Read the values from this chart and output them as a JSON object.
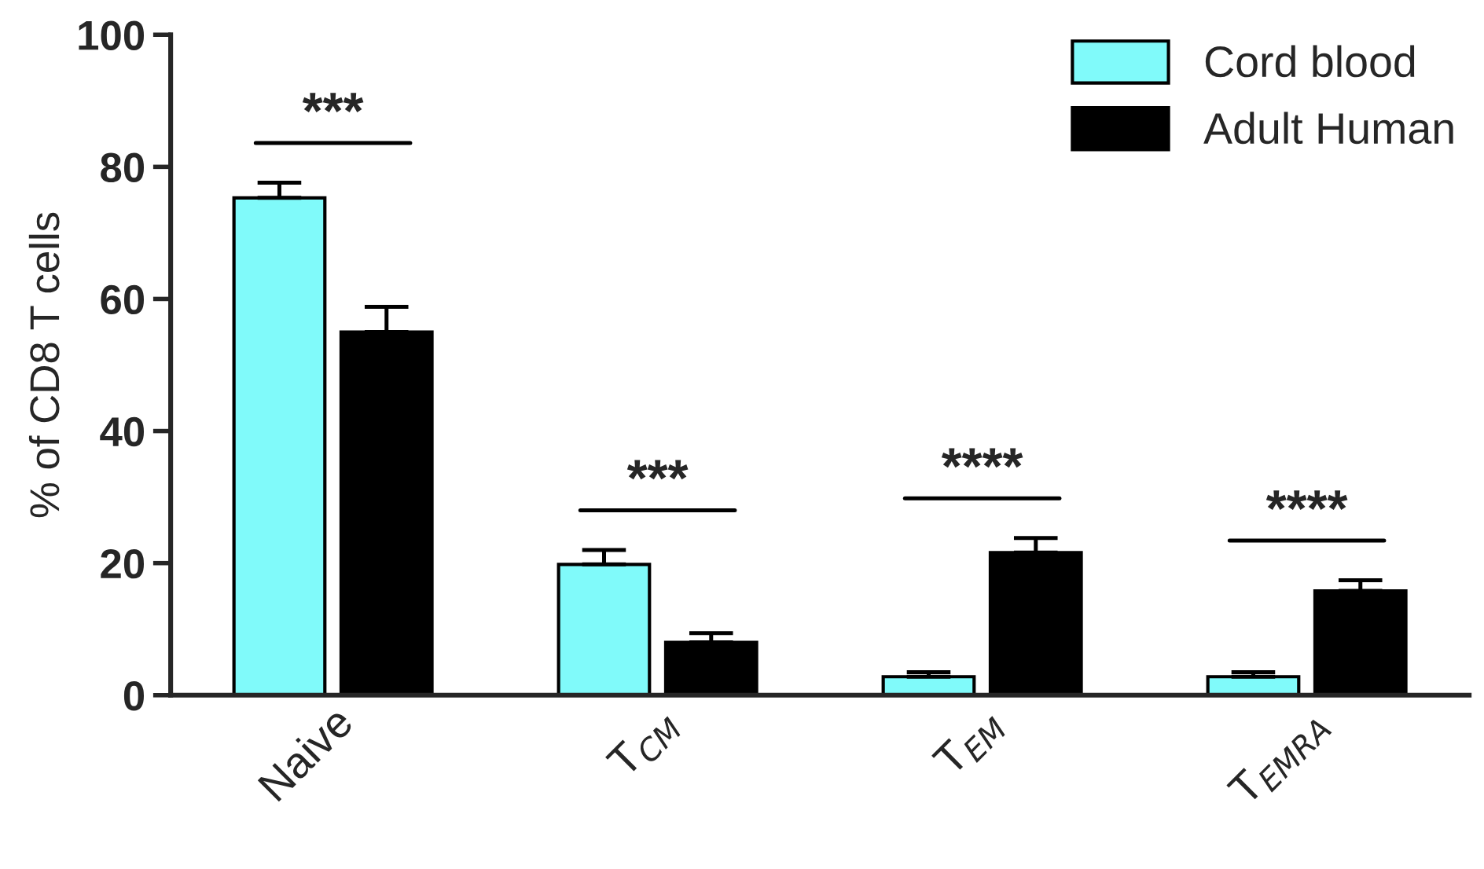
{
  "chart_data": {
    "type": "bar",
    "ylabel": "% of CD8 T cells",
    "categories": [
      "Naive",
      "T$_{CM}$",
      "T$_{EM}$",
      "T$_{EMRA}$"
    ],
    "series": [
      {
        "name": "Cord blood",
        "color": "#80fafa",
        "values": [
          75.3,
          19.8,
          2.8,
          2.8
        ],
        "errors": [
          2.3,
          2.2,
          0.7,
          0.7
        ]
      },
      {
        "name": "Adult Human",
        "color": "#000000",
        "values": [
          55,
          8,
          21.6,
          15.8
        ],
        "errors": [
          3.8,
          1.4,
          2.2,
          1.6
        ]
      }
    ],
    "ylim": [
      0,
      100
    ],
    "yticks": [
      0,
      20,
      40,
      60,
      80,
      100
    ],
    "annotations": [
      "***",
      "***",
      "****",
      "****"
    ],
    "legend": "top right",
    "grid": false
  }
}
